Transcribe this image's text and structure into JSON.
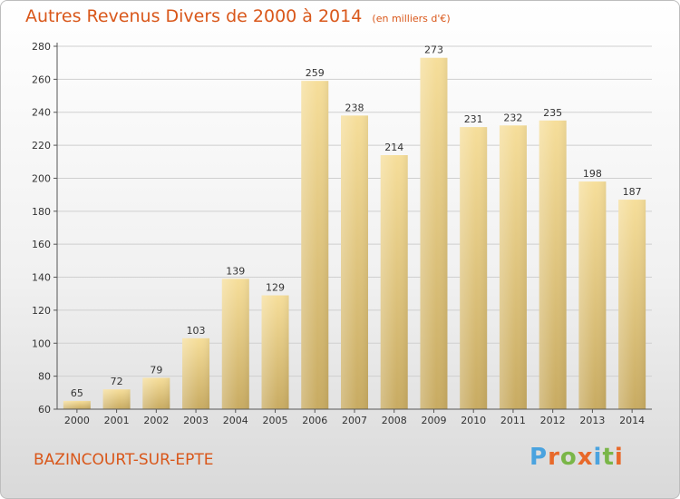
{
  "header": {
    "title": "Autres Revenus Divers de 2000 à 2014",
    "unit_note": "(en milliers d'€)"
  },
  "footer": {
    "town": "BAZINCOURT-SUR-EPTE",
    "logo_text": "Proxiti",
    "logo_colors": [
      "#4aa3df",
      "#e8692a",
      "#7ab648",
      "#e8692a",
      "#4aa3df",
      "#7ab648",
      "#e8692a"
    ]
  },
  "colors": {
    "title": "#d9571a",
    "bar_light": "#f6de9a",
    "bar_dark": "#c8ab62",
    "grid": "#cfcfcf"
  },
  "chart_data": {
    "type": "bar",
    "title": "Autres Revenus Divers de 2000 à 2014",
    "subtitle": "(en milliers d'€)",
    "categories": [
      "2000",
      "2001",
      "2002",
      "2003",
      "2004",
      "2005",
      "2006",
      "2007",
      "2008",
      "2009",
      "2010",
      "2011",
      "2012",
      "2013",
      "2014"
    ],
    "values": [
      65,
      72,
      79,
      103,
      139,
      129,
      259,
      238,
      214,
      273,
      231,
      232,
      235,
      198,
      187
    ],
    "ylim": [
      60,
      280
    ],
    "yticks": [
      60,
      80,
      100,
      120,
      140,
      160,
      180,
      200,
      220,
      240,
      260,
      280
    ],
    "grid": true,
    "xlabel": "",
    "ylabel": ""
  }
}
